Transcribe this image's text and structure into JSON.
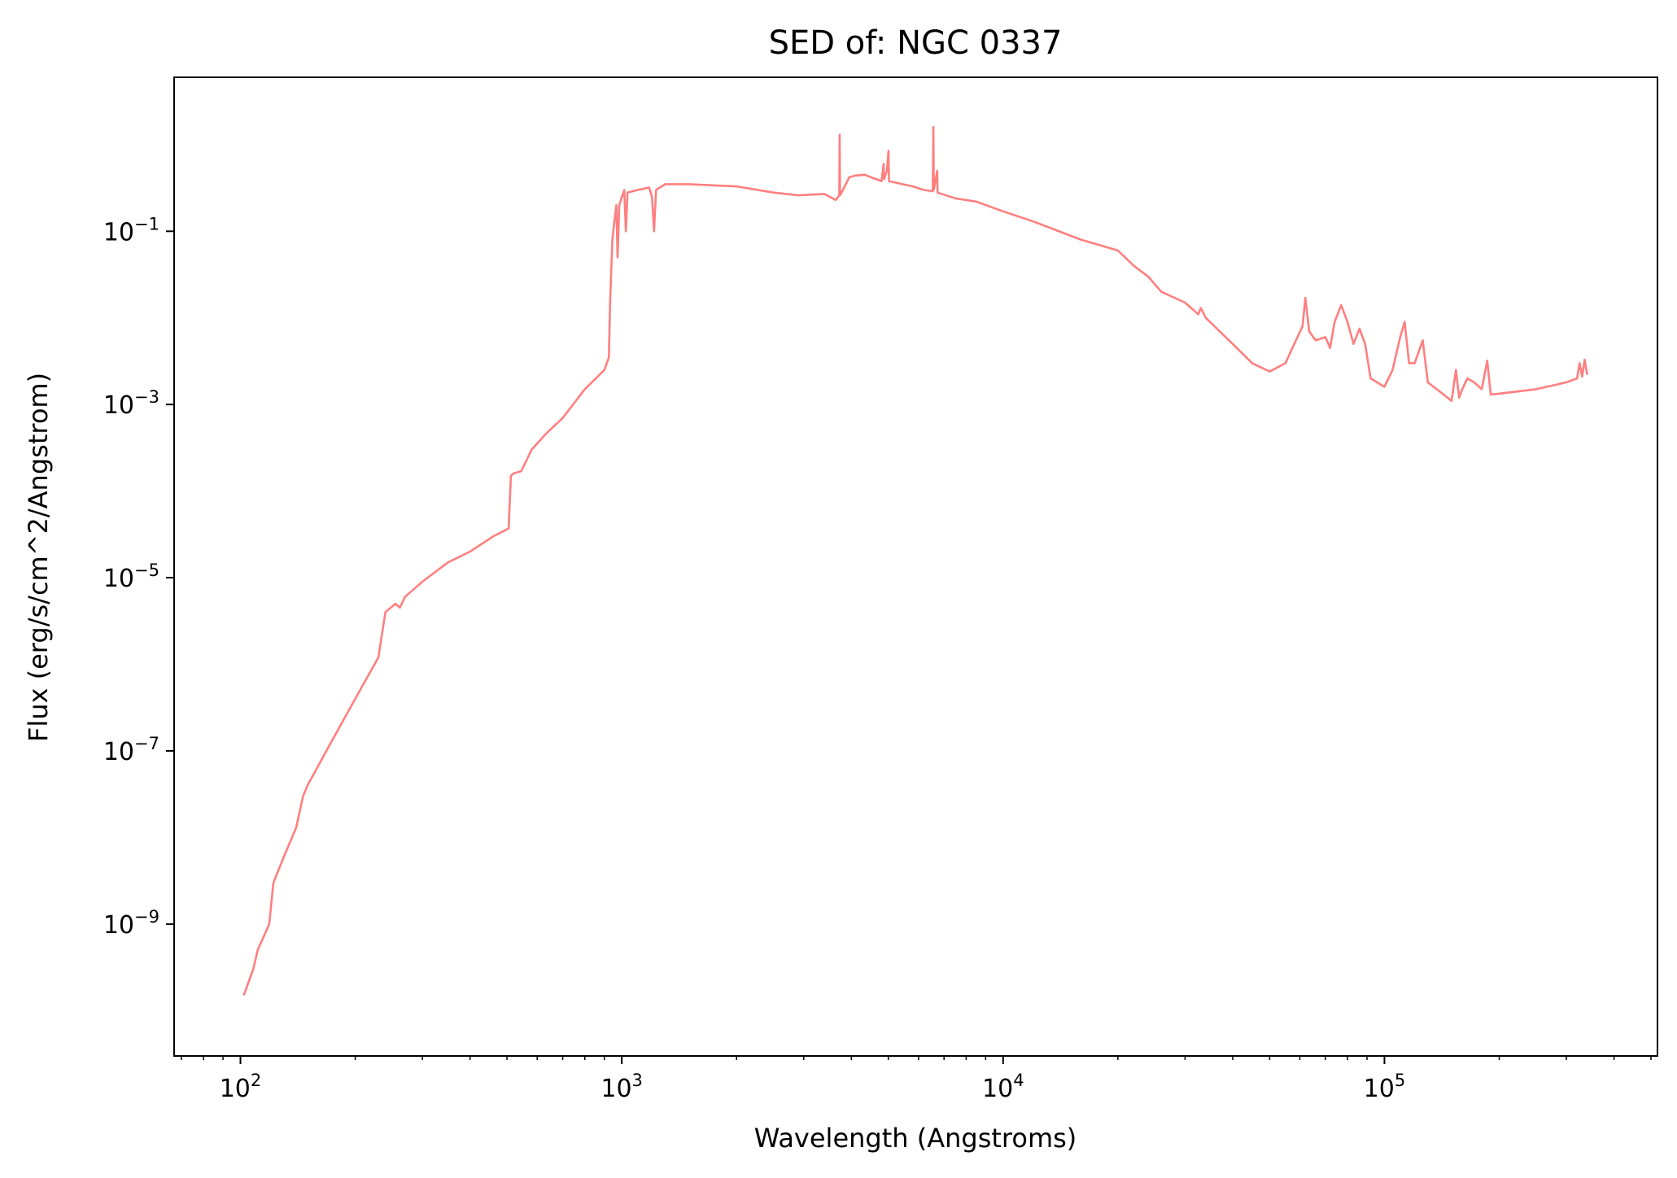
{
  "chart_data": {
    "type": "line",
    "title": "SED of: NGC 0337",
    "xlabel": "Wavelength (Angstroms)",
    "ylabel": "Flux (erg/s/cm^2/Angstrom)",
    "xscale": "log",
    "yscale": "log",
    "xlim": [
      67,
      520000
    ],
    "ylim": [
      3e-11,
      6
    ],
    "grid": false,
    "line_color": "#ff7f7f",
    "x_major_ticks": [
      {
        "value": 100,
        "base": "10",
        "exp": "2"
      },
      {
        "value": 1000,
        "base": "10",
        "exp": "3"
      },
      {
        "value": 10000,
        "base": "10",
        "exp": "4"
      },
      {
        "value": 100000,
        "base": "10",
        "exp": "5"
      }
    ],
    "y_major_ticks": [
      {
        "value": 1e-09,
        "base": "10",
        "exp": "−9"
      },
      {
        "value": 1e-07,
        "base": "10",
        "exp": "−7"
      },
      {
        "value": 1e-05,
        "base": "10",
        "exp": "−5"
      },
      {
        "value": 0.001,
        "base": "10",
        "exp": "−3"
      },
      {
        "value": 0.1,
        "base": "10",
        "exp": "−1"
      }
    ],
    "series": [
      {
        "points": [
          [
            102,
            1.5e-10
          ],
          [
            108,
            3e-10
          ],
          [
            111,
            5e-10
          ],
          [
            119,
            1e-09
          ],
          [
            122,
            3e-09
          ],
          [
            130,
            6e-09
          ],
          [
            140,
            1.3e-08
          ],
          [
            146,
            3e-08
          ],
          [
            150,
            4e-08
          ],
          [
            170,
            1.1e-07
          ],
          [
            200,
            4e-07
          ],
          [
            230,
            1.2e-06
          ],
          [
            240,
            4e-06
          ],
          [
            255,
            5e-06
          ],
          [
            262,
            4.5e-06
          ],
          [
            270,
            6e-06
          ],
          [
            300,
            9e-06
          ],
          [
            350,
            1.5e-05
          ],
          [
            400,
            2e-05
          ],
          [
            460,
            3e-05
          ],
          [
            505,
            3.7e-05
          ],
          [
            512,
            0.00015
          ],
          [
            520,
            0.00016
          ],
          [
            545,
            0.00017
          ],
          [
            555,
            0.0002
          ],
          [
            580,
            0.0003
          ],
          [
            630,
            0.00045
          ],
          [
            700,
            0.0007
          ],
          [
            800,
            0.0015
          ],
          [
            900,
            0.0025
          ],
          [
            925,
            0.0035
          ],
          [
            932,
            0.015
          ],
          [
            945,
            0.08
          ],
          [
            960,
            0.15
          ],
          [
            968,
            0.2
          ],
          [
            975,
            0.05
          ],
          [
            985,
            0.2
          ],
          [
            1000,
            0.25
          ],
          [
            1015,
            0.3
          ],
          [
            1025,
            0.1
          ],
          [
            1035,
            0.28
          ],
          [
            1100,
            0.3
          ],
          [
            1180,
            0.32
          ],
          [
            1200,
            0.25
          ],
          [
            1215,
            0.1
          ],
          [
            1230,
            0.3
          ],
          [
            1300,
            0.35
          ],
          [
            1500,
            0.35
          ],
          [
            2000,
            0.33
          ],
          [
            2500,
            0.28
          ],
          [
            2900,
            0.26
          ],
          [
            3400,
            0.27
          ],
          [
            3640,
            0.23
          ],
          [
            3720,
            0.26
          ],
          [
            3727,
            1.3
          ],
          [
            3735,
            0.26
          ],
          [
            3800,
            0.3
          ],
          [
            3950,
            0.42
          ],
          [
            4100,
            0.44
          ],
          [
            4340,
            0.45
          ],
          [
            4500,
            0.42
          ],
          [
            4800,
            0.38
          ],
          [
            4861,
            0.6
          ],
          [
            4870,
            0.4
          ],
          [
            4959,
            0.5
          ],
          [
            5007,
            0.85
          ],
          [
            5020,
            0.38
          ],
          [
            5300,
            0.36
          ],
          [
            5800,
            0.33
          ],
          [
            6200,
            0.3
          ],
          [
            6540,
            0.29
          ],
          [
            6563,
            1.6
          ],
          [
            6580,
            0.3
          ],
          [
            6717,
            0.5
          ],
          [
            6731,
            0.28
          ],
          [
            7500,
            0.24
          ],
          [
            8500,
            0.22
          ],
          [
            10000,
            0.17
          ],
          [
            12000,
            0.13
          ],
          [
            16000,
            0.08
          ],
          [
            20000,
            0.06
          ],
          [
            22000,
            0.04
          ],
          [
            24000,
            0.03
          ],
          [
            26000,
            0.02
          ],
          [
            30000,
            0.015
          ],
          [
            32500,
            0.011
          ],
          [
            33000,
            0.013
          ],
          [
            34000,
            0.01
          ],
          [
            40000,
            0.005
          ],
          [
            45000,
            0.003
          ],
          [
            50000,
            0.0024
          ],
          [
            55000,
            0.003
          ],
          [
            58000,
            0.005
          ],
          [
            61000,
            0.008
          ],
          [
            62000,
            0.017
          ],
          [
            63500,
            0.007
          ],
          [
            66000,
            0.0055
          ],
          [
            70000,
            0.006
          ],
          [
            72000,
            0.0045
          ],
          [
            74000,
            0.009
          ],
          [
            77000,
            0.014
          ],
          [
            80000,
            0.009
          ],
          [
            83000,
            0.005
          ],
          [
            86000,
            0.0075
          ],
          [
            89000,
            0.005
          ],
          [
            92000,
            0.002
          ],
          [
            100000,
            0.0016
          ],
          [
            105000,
            0.0025
          ],
          [
            110000,
            0.006
          ],
          [
            113000,
            0.009
          ],
          [
            116000,
            0.003
          ],
          [
            120000,
            0.003
          ],
          [
            126000,
            0.0055
          ],
          [
            130000,
            0.0018
          ],
          [
            140000,
            0.0014
          ],
          [
            150000,
            0.0011
          ],
          [
            154000,
            0.0025
          ],
          [
            157000,
            0.0012
          ],
          [
            160000,
            0.0015
          ],
          [
            165000,
            0.002
          ],
          [
            172000,
            0.0018
          ],
          [
            180000,
            0.0015
          ],
          [
            186000,
            0.0032
          ],
          [
            190000,
            0.0013
          ],
          [
            220000,
            0.0014
          ],
          [
            250000,
            0.0015
          ],
          [
            300000,
            0.0018
          ],
          [
            320000,
            0.002
          ],
          [
            325000,
            0.003
          ],
          [
            330000,
            0.0021
          ],
          [
            335000,
            0.0033
          ],
          [
            340000,
            0.0022
          ]
        ]
      }
    ]
  }
}
